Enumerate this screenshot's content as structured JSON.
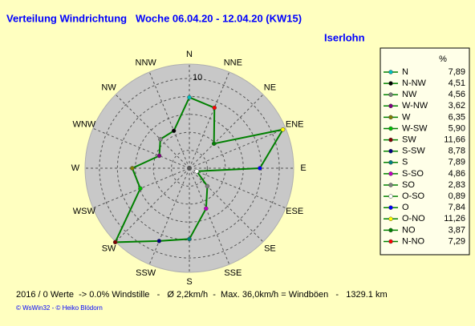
{
  "chart_data": {
    "type": "polar-line",
    "title": "Verteilung Windrichtung   Woche 06.04.20 - 12.04.20 (KW15)",
    "location": "Iserlohn",
    "direction_labels": [
      "N",
      "NNE",
      "NE",
      "ENE",
      "E",
      "ESE",
      "SE",
      "SSE",
      "S",
      "SSW",
      "SW",
      "WSW",
      "W",
      "WNW",
      "NW",
      "NNW"
    ],
    "series_direction": "counterclockwise",
    "legend_header": "%",
    "categories": [
      "N",
      "N-NW",
      "NW",
      "W-NW",
      "W",
      "W-SW",
      "SW",
      "S-SW",
      "S",
      "S-SO",
      "SO",
      "O-SO",
      "O",
      "O-NO",
      "NO",
      "N-NO"
    ],
    "values": [
      7.89,
      4.51,
      4.56,
      3.62,
      6.35,
      5.9,
      11.66,
      8.78,
      7.89,
      4.86,
      2.83,
      0.89,
      7.84,
      11.26,
      3.87,
      7.29
    ],
    "value_labels": [
      "7,89",
      "4,51",
      "4,56",
      "3,62",
      "6,35",
      "5,90",
      "11,66",
      "8,78",
      "7,89",
      "4,86",
      "2,83",
      "0,89",
      "7,84",
      "11,26",
      "3,87",
      "7,29"
    ],
    "point_colors": [
      "#00c0c0",
      "#000000",
      "#808080",
      "#800080",
      "#808000",
      "#00c000",
      "#800000",
      "#000080",
      "#008080",
      "#c000c0",
      "#808080",
      "#ffffff",
      "#0000ff",
      "#ffff00",
      "#008000",
      "#ff0000"
    ],
    "line_color": "#008000",
    "rlim": [
      0,
      11.6
    ],
    "rgrid": [
      2,
      4,
      6,
      8,
      10
    ],
    "rticks": [
      10
    ],
    "footer": "2016 / 0 Werte  -> 0.0% Windstille   -   Ø 2,2km/h  -  Max. 36,0km/h = Windböen   -   1329.1 km",
    "credit": "© WsWin32  - © Heiko Blödorn"
  }
}
